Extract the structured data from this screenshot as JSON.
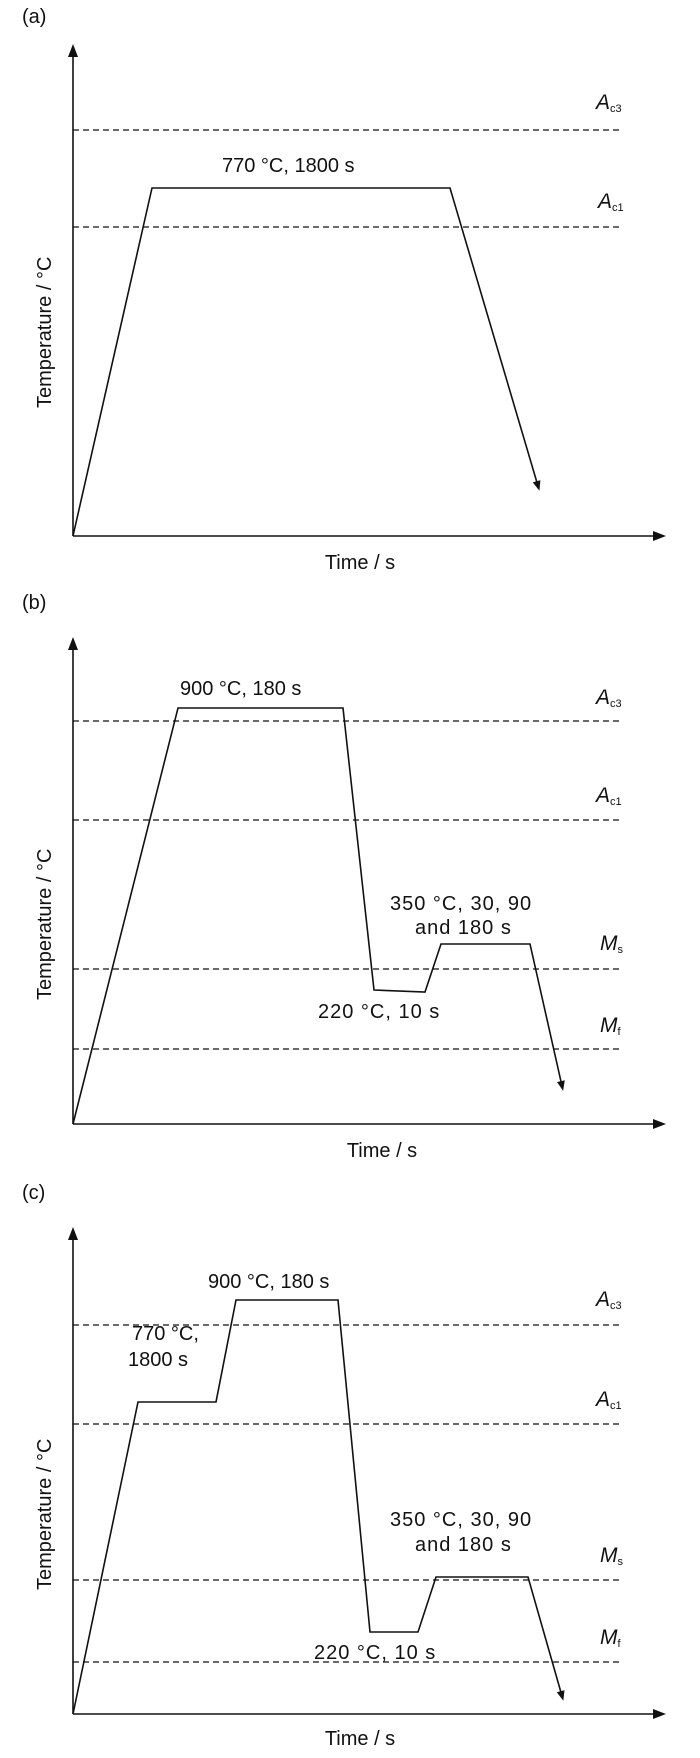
{
  "panels": [
    {
      "label": "(a)",
      "xlabel": "Time / s",
      "ylabel": "Temperature / °C",
      "lines": [
        {
          "sym": "A",
          "sub": "c3"
        },
        {
          "sym": "A",
          "sub": "c1"
        }
      ],
      "annotations": [
        "770 °C, 1800 s"
      ]
    },
    {
      "label": "(b)",
      "xlabel": "Time / s",
      "ylabel": "Temperature / °C",
      "lines": [
        {
          "sym": "A",
          "sub": "c3"
        },
        {
          "sym": "A",
          "sub": "c1"
        },
        {
          "sym": "M",
          "sub": "s"
        },
        {
          "sym": "M",
          "sub": "f"
        }
      ],
      "annotations": [
        "900 °C, 180 s",
        "350 °C, 30, 90",
        "and 180 s",
        "220 °C, 10 s"
      ]
    },
    {
      "label": "(c)",
      "xlabel": "Time / s",
      "ylabel": "Temperature / °C",
      "lines": [
        {
          "sym": "A",
          "sub": "c3"
        },
        {
          "sym": "A",
          "sub": "c1"
        },
        {
          "sym": "M",
          "sub": "s"
        },
        {
          "sym": "M",
          "sub": "f"
        }
      ],
      "annotations": [
        "900 °C, 180 s",
        "770 °C,",
        "1800 s",
        "350 °C, 30, 90",
        "and 180 s",
        "220 °C, 10 s"
      ]
    }
  ]
}
